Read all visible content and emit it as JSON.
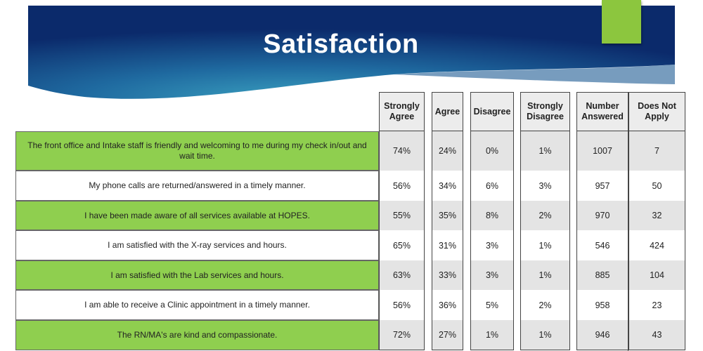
{
  "slide": {
    "title": "Satisfaction",
    "colors": {
      "banner_dark": "#0b2a6b",
      "banner_light": "#2e8bb0",
      "accent_green": "#8cc63e",
      "row_green": "#8fcf4f"
    }
  },
  "table": {
    "headers": {
      "strongly_agree": "Strongly Agree",
      "agree": "Agree",
      "disagree": "Disagree",
      "strongly_disagree": "Strongly Disagree",
      "number_answered": "Number Answered",
      "does_not_apply": "Does Not Apply"
    },
    "rows": [
      {
        "question": "The front office and Intake staff is friendly and welcoming to me during my check in/out and wait time.",
        "strongly_agree": "74%",
        "agree": "24%",
        "disagree": "0%",
        "strongly_disagree": "1%",
        "number_answered": "1007",
        "does_not_apply": "7"
      },
      {
        "question": "My phone calls are returned/answered  in a timely manner.",
        "strongly_agree": "56%",
        "agree": "34%",
        "disagree": "6%",
        "strongly_disagree": "3%",
        "number_answered": "957",
        "does_not_apply": "50"
      },
      {
        "question": "I have been made aware of all services available at HOPES.",
        "strongly_agree": "55%",
        "agree": "35%",
        "disagree": "8%",
        "strongly_disagree": "2%",
        "number_answered": "970",
        "does_not_apply": "32"
      },
      {
        "question": "I am satisfied with the X-ray services and hours.",
        "strongly_agree": "65%",
        "agree": "31%",
        "disagree": "3%",
        "strongly_disagree": "1%",
        "number_answered": "546",
        "does_not_apply": "424"
      },
      {
        "question": "I am satisfied with the Lab services and hours.",
        "strongly_agree": "63%",
        "agree": "33%",
        "disagree": "3%",
        "strongly_disagree": "1%",
        "number_answered": "885",
        "does_not_apply": "104"
      },
      {
        "question": "I am able to receive a Clinic appointment  in a timely manner.",
        "strongly_agree": "56%",
        "agree": "36%",
        "disagree": "5%",
        "strongly_disagree": "2%",
        "number_answered": "958",
        "does_not_apply": "23"
      },
      {
        "question": "The RN/MA's are kind and compassionate.",
        "strongly_agree": "72%",
        "agree": "27%",
        "disagree": "1%",
        "strongly_disagree": "1%",
        "number_answered": "946",
        "does_not_apply": "43"
      }
    ]
  }
}
